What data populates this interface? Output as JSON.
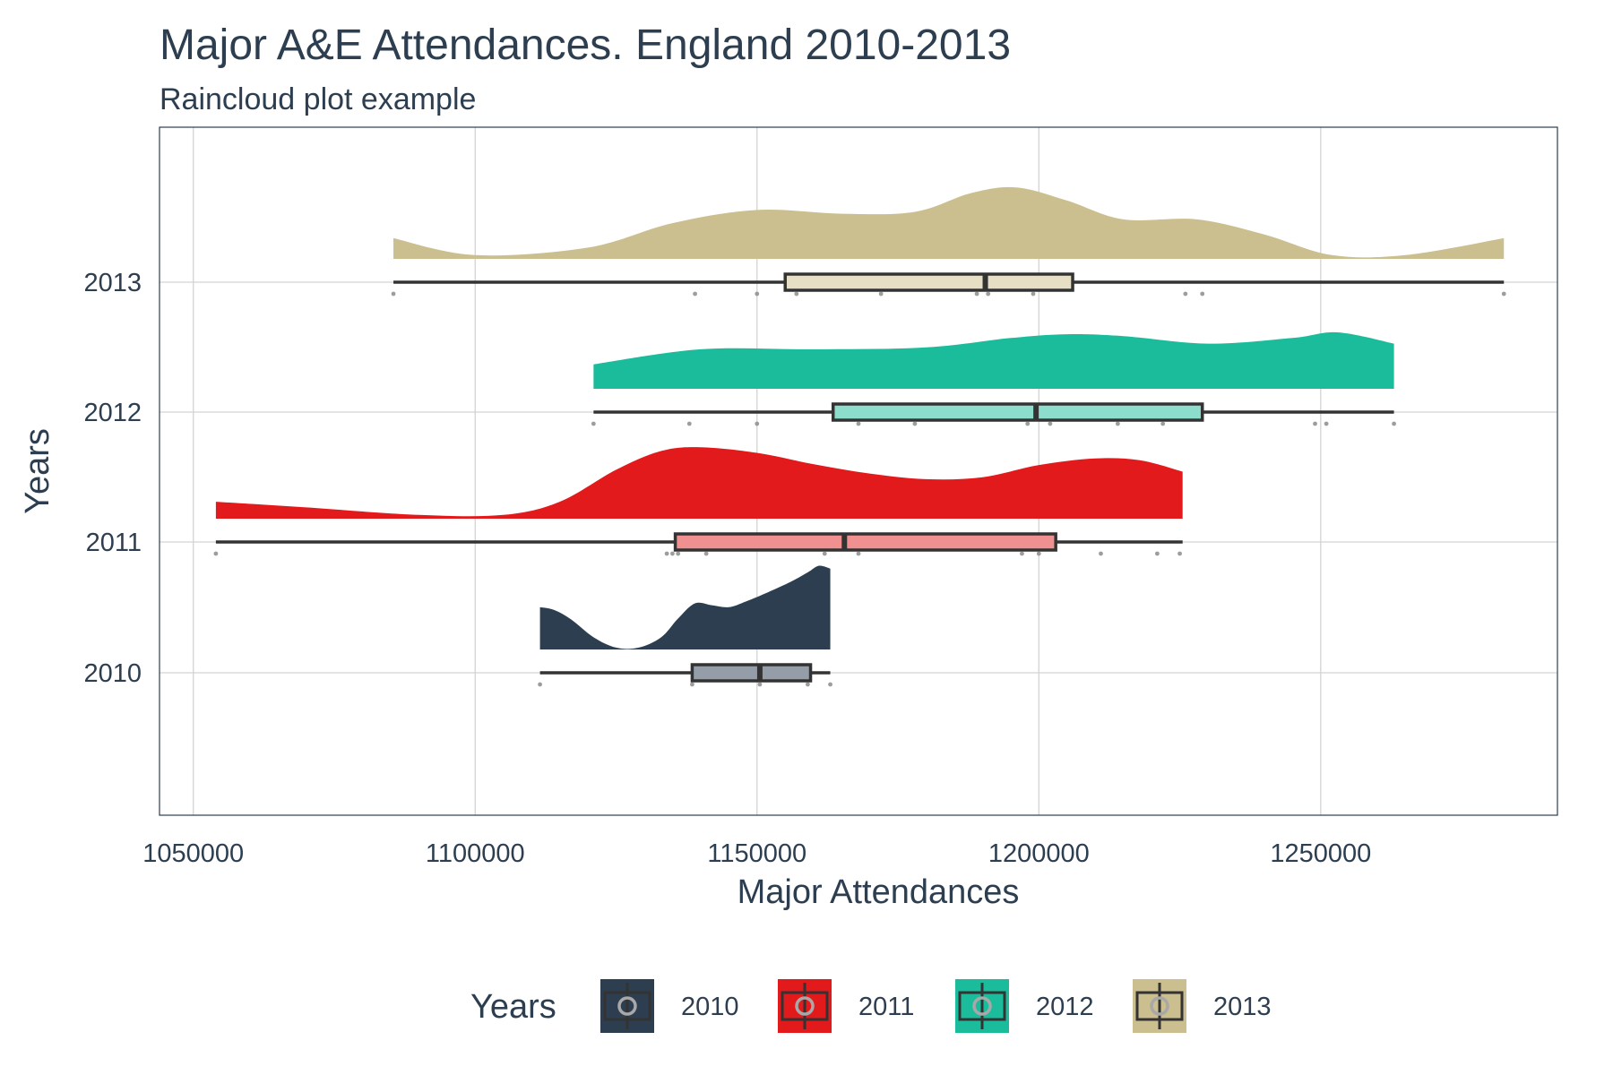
{
  "chart_data": {
    "type": "raincloud",
    "title": "Major A&E Attendances. England 2010-2013",
    "subtitle": "Raincloud plot example",
    "xlabel": "Major Attendances",
    "ylabel": "Years",
    "xlim": [
      1044000,
      1292000
    ],
    "x_ticks": [
      1050000,
      1100000,
      1150000,
      1200000,
      1250000
    ],
    "x_tick_labels": [
      "1050000",
      "1100000",
      "1150000",
      "1200000",
      "1250000"
    ],
    "grid": true,
    "legend": {
      "title": "Years",
      "position": "bottom"
    },
    "series": [
      {
        "name": "2010",
        "color": "#2c3e50",
        "box_fill": "#959ea8",
        "min": 1111500,
        "q1": 1138500,
        "median": 1150500,
        "q3": 1159500,
        "max": 1163000,
        "points": [
          1111500,
          1138500,
          1150500,
          1159000,
          1163000
        ],
        "density": [
          [
            1111500,
            0.45
          ],
          [
            1114000,
            0.42
          ],
          [
            1117000,
            0.32
          ],
          [
            1121000,
            0.13
          ],
          [
            1125000,
            0.02
          ],
          [
            1129000,
            0.02
          ],
          [
            1133000,
            0.13
          ],
          [
            1136000,
            0.33
          ],
          [
            1139000,
            0.49
          ],
          [
            1142000,
            0.47
          ],
          [
            1145000,
            0.45
          ],
          [
            1148000,
            0.51
          ],
          [
            1152000,
            0.61
          ],
          [
            1156000,
            0.72
          ],
          [
            1159000,
            0.82
          ],
          [
            1161000,
            0.89
          ],
          [
            1163000,
            0.86
          ]
        ]
      },
      {
        "name": "2011",
        "color": "#e31a1c",
        "box_fill": "#f09090",
        "min": 1054000,
        "q1": 1135500,
        "median": 1165500,
        "q3": 1203000,
        "max": 1225500,
        "points": [
          1054000,
          1134000,
          1135000,
          1136000,
          1141000,
          1162000,
          1168000,
          1197000,
          1200000,
          1211000,
          1221000,
          1225000
        ],
        "density": [
          [
            1054000,
            0.18
          ],
          [
            1070000,
            0.12
          ],
          [
            1090000,
            0.04
          ],
          [
            1105000,
            0.04
          ],
          [
            1115000,
            0.18
          ],
          [
            1125000,
            0.52
          ],
          [
            1133000,
            0.72
          ],
          [
            1140000,
            0.76
          ],
          [
            1150000,
            0.7
          ],
          [
            1160000,
            0.58
          ],
          [
            1170000,
            0.48
          ],
          [
            1180000,
            0.42
          ],
          [
            1190000,
            0.44
          ],
          [
            1200000,
            0.57
          ],
          [
            1210000,
            0.64
          ],
          [
            1218000,
            0.62
          ],
          [
            1225500,
            0.5
          ]
        ]
      },
      {
        "name": "2012",
        "color": "#1abc9c",
        "box_fill": "#8dddcd",
        "min": 1121000,
        "q1": 1163500,
        "median": 1199500,
        "q3": 1229000,
        "max": 1263000,
        "points": [
          1121000,
          1138000,
          1150000,
          1168000,
          1178000,
          1198000,
          1202000,
          1214000,
          1222000,
          1249000,
          1251000,
          1263000
        ],
        "density": [
          [
            1121000,
            0.26
          ],
          [
            1140000,
            0.42
          ],
          [
            1160000,
            0.42
          ],
          [
            1180000,
            0.44
          ],
          [
            1195000,
            0.54
          ],
          [
            1205000,
            0.58
          ],
          [
            1215000,
            0.56
          ],
          [
            1230000,
            0.48
          ],
          [
            1245000,
            0.54
          ],
          [
            1253000,
            0.6
          ],
          [
            1263000,
            0.48
          ]
        ]
      },
      {
        "name": "2013",
        "color": "#cbbe8f",
        "box_fill": "#e6dfc6",
        "min": 1085500,
        "q1": 1155000,
        "median": 1190500,
        "q3": 1206000,
        "max": 1282500,
        "points": [
          1085500,
          1139000,
          1150000,
          1157000,
          1172000,
          1189000,
          1191000,
          1199000,
          1226000,
          1229000,
          1282500
        ],
        "density": [
          [
            1085500,
            0.22
          ],
          [
            1100000,
            0.04
          ],
          [
            1120000,
            0.12
          ],
          [
            1135000,
            0.38
          ],
          [
            1150000,
            0.52
          ],
          [
            1165000,
            0.48
          ],
          [
            1178000,
            0.5
          ],
          [
            1188000,
            0.7
          ],
          [
            1196000,
            0.76
          ],
          [
            1205000,
            0.62
          ],
          [
            1215000,
            0.42
          ],
          [
            1228000,
            0.42
          ],
          [
            1240000,
            0.26
          ],
          [
            1252000,
            0.04
          ],
          [
            1265000,
            0.04
          ],
          [
            1282500,
            0.22
          ]
        ]
      }
    ]
  }
}
